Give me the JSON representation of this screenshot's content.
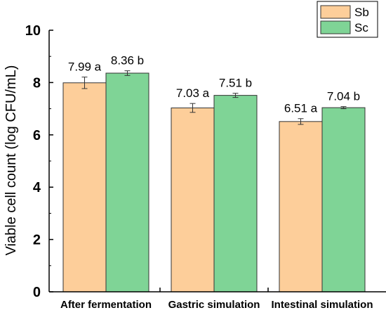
{
  "chart_data": {
    "type": "bar",
    "title": "",
    "xlabel": "",
    "ylabel": "Viable cell count (log CFU/mL)",
    "ylim": [
      0,
      10
    ],
    "yticks": [
      0,
      2,
      4,
      6,
      8,
      10
    ],
    "grid": false,
    "legend_position": "top-right",
    "categories": [
      "After fermentation",
      "Gastric simulation",
      "Intestinal simulation"
    ],
    "series": [
      {
        "name": "Sb",
        "color": "#FDCE9A",
        "values": [
          7.99,
          7.03,
          6.51
        ],
        "errors": [
          0.22,
          0.17,
          0.11
        ],
        "labels": [
          "7.99 a",
          "7.03 a",
          "6.51 a"
        ]
      },
      {
        "name": "Sc",
        "color": "#7FD496",
        "values": [
          8.36,
          7.51,
          7.04
        ],
        "errors": [
          0.09,
          0.08,
          0.04
        ],
        "labels": [
          "8.36 b",
          "7.51 b",
          "7.04 b"
        ]
      }
    ]
  }
}
